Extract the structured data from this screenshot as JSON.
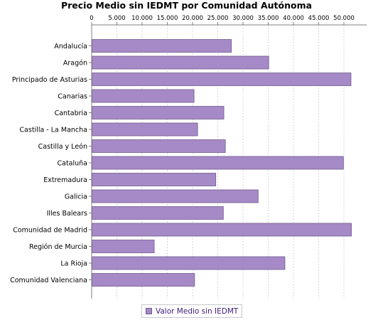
{
  "chart_data": {
    "type": "bar",
    "orientation": "horizontal",
    "title": "Precio Medio sin IEDMT por Comunidad Autónoma",
    "categories": [
      "Andalucía",
      "Aragón",
      "Principado de Asturias",
      "Canarias",
      "Cantabria",
      "Castilla - La Mancha",
      "Castilla y León",
      "Cataluña",
      "Extremadura",
      "Galicia",
      "Illes Balears",
      "Comunidad de Madrid",
      "Región de Murcia",
      "La Rioja",
      "Comunidad Valenciana"
    ],
    "series": [
      {
        "name": "Valor Medio sin IEDMT",
        "color": "#a68ac7",
        "values": [
          27700,
          35100,
          51400,
          20300,
          26200,
          21000,
          26500,
          49900,
          24600,
          33000,
          26100,
          51500,
          12400,
          38300,
          20400
        ]
      }
    ],
    "xaxis": {
      "position": "top",
      "range": [
        0,
        54500
      ],
      "ticks": [
        0,
        5000,
        10000,
        15000,
        20000,
        25000,
        30000,
        35000,
        40000,
        45000,
        50000
      ],
      "tick_labels": [
        "0",
        "5.000",
        "10.000",
        "15.000",
        "20.000",
        "25.000",
        "30.000",
        "35.000",
        "40.000",
        "45.000",
        "50.000"
      ],
      "grid": true
    },
    "legend": {
      "position": "bottom"
    }
  }
}
